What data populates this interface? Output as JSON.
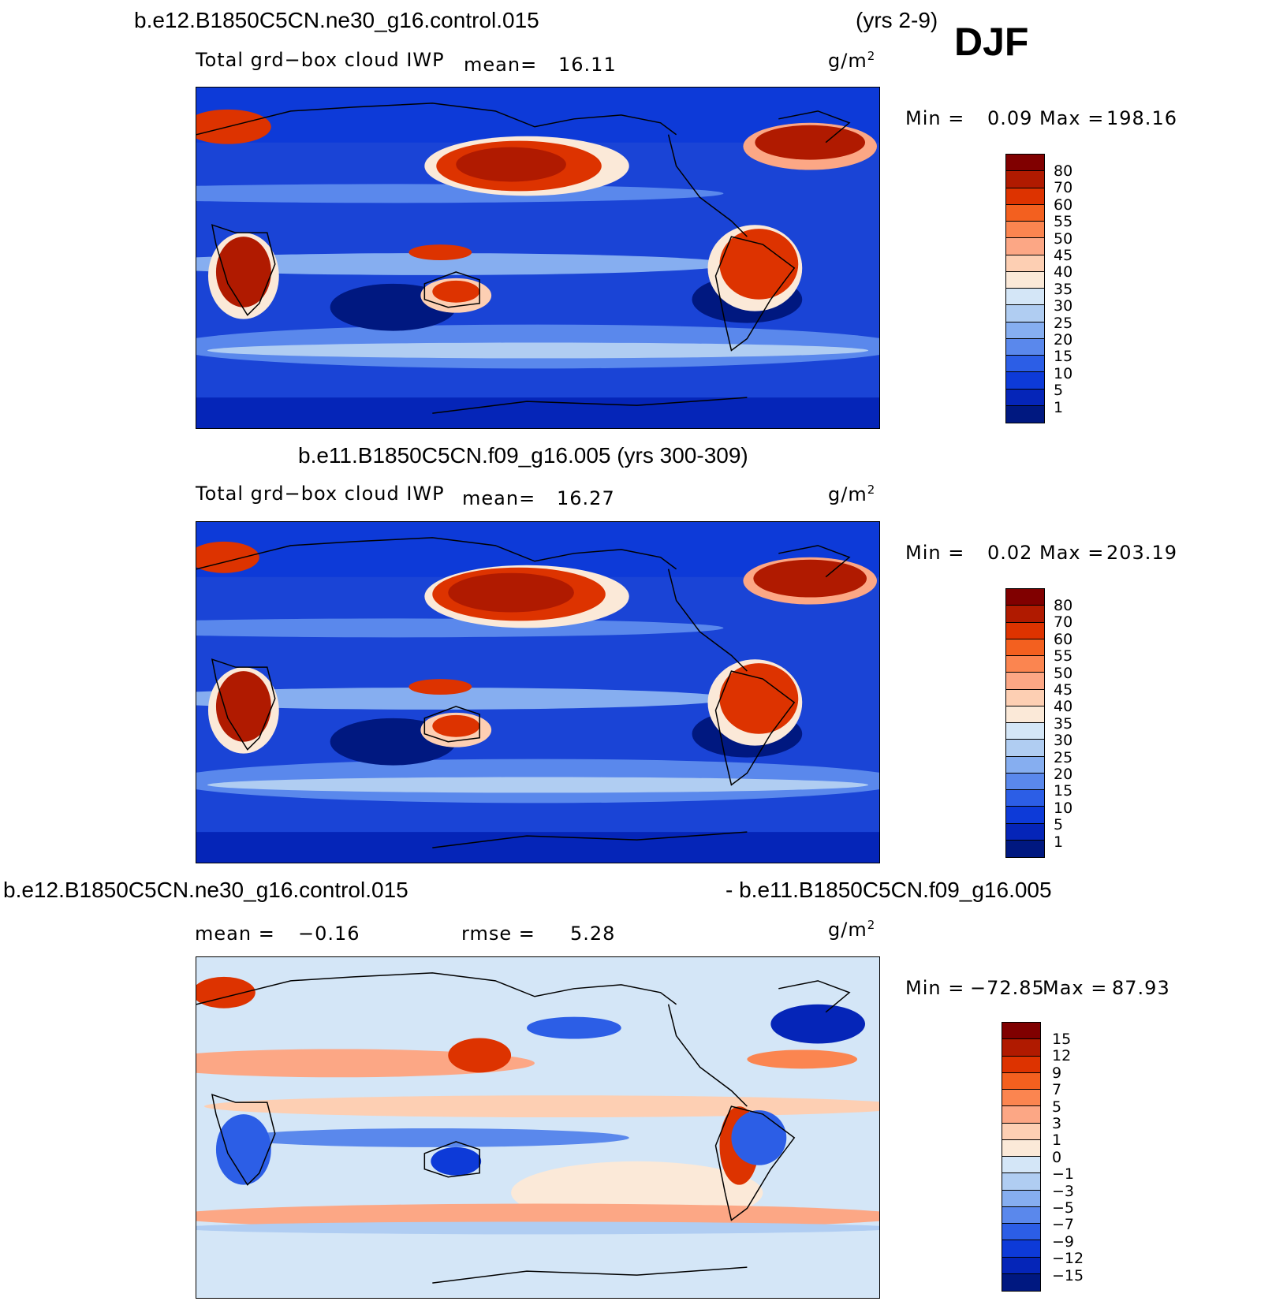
{
  "season": "DJF",
  "panels": [
    {
      "case_title": "b.e12.B1850C5CN.ne30_g16.control.015",
      "years": "(yrs 2-9)",
      "field": "Total grd−box cloud IWP",
      "mean_label": "mean=",
      "mean_value": "16.11",
      "units": "g/m",
      "units_exp": "2",
      "minmax_label": "Min =",
      "min_value": "0.09",
      "max_label": "Max =",
      "max_value": "198.16",
      "colorbar_ticks": [
        "80",
        "70",
        "60",
        "55",
        "50",
        "45",
        "40",
        "35",
        "30",
        "25",
        "20",
        "15",
        "10",
        "5",
        "1"
      ]
    },
    {
      "case_title": "b.e11.B1850C5CN.f09_g16.005 (yrs 300-309)",
      "field": "Total grd−box cloud IWP",
      "mean_label": "mean=",
      "mean_value": "16.27",
      "units": "g/m",
      "units_exp": "2",
      "minmax_label": "Min =",
      "min_value": "0.02",
      "max_label": "Max =",
      "max_value": "203.19",
      "colorbar_ticks": [
        "80",
        "70",
        "60",
        "55",
        "50",
        "45",
        "40",
        "35",
        "30",
        "25",
        "20",
        "15",
        "10",
        "5",
        "1"
      ]
    },
    {
      "case_left": "b.e12.B1850C5CN.ne30_g16.control.015",
      "case_right": "- b.e11.B1850C5CN.f09_g16.005",
      "mean_label": "mean =",
      "mean_value": "−0.16",
      "rmse_label": "rmse =",
      "rmse_value": "5.28",
      "units": "g/m",
      "units_exp": "2",
      "minmax_label": "Min =",
      "min_value": "−72.85",
      "max_label": "Max =",
      "max_value": "87.93",
      "colorbar_ticks": [
        "15",
        "12",
        "9",
        "7",
        "5",
        "3",
        "1",
        "0",
        "−1",
        "−3",
        "−5",
        "−7",
        "−9",
        "−12",
        "−15"
      ]
    }
  ],
  "palettes": {
    "field": [
      "#800000",
      "#b01a00",
      "#dd3300",
      "#f3601f",
      "#fb8550",
      "#fca785",
      "#fdcfb3",
      "#fbe9d8",
      "#d4e6f7",
      "#b0cdf2",
      "#86aef0",
      "#5a88ec",
      "#2c5ee6",
      "#0d3ad8",
      "#0525b8",
      "#001880"
    ],
    "diff": [
      "#800000",
      "#b01a00",
      "#dd3300",
      "#f3601f",
      "#fb8550",
      "#fca785",
      "#fdcfb3",
      "#fbe9d8",
      "#d4e6f7",
      "#b0cdf2",
      "#86aef0",
      "#5a88ec",
      "#2c5ee6",
      "#0d3ad8",
      "#0525b8",
      "#001880"
    ]
  }
}
